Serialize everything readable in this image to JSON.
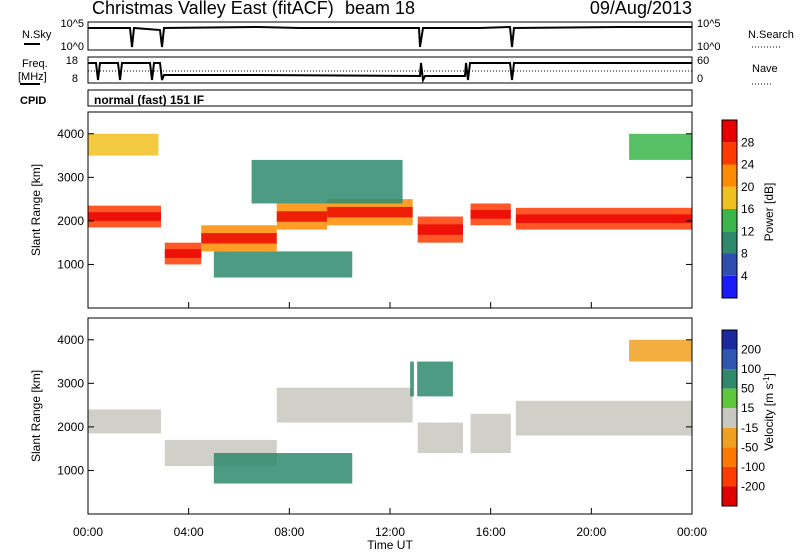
{
  "header": {
    "title": "Christmas Valley East (fitACF)",
    "beam": "beam 18",
    "date": "09/Aug/2013"
  },
  "control_panels": {
    "nsky_label": "N.Sky",
    "nsky_ticks": [
      "10^5",
      "10^0"
    ],
    "nsearch_label": "N.Search",
    "nsearch_ticks": [
      "10^5",
      "10^0"
    ],
    "freq_label_1": "Freq.",
    "freq_label_2": "[MHz]",
    "freq_ticks": [
      "18",
      "8"
    ],
    "nave_label": "Nave",
    "nave_ticks": [
      "60",
      "0"
    ],
    "cpid_label": "CPID",
    "cpid_value": "normal (fast) 151 IF"
  },
  "axes": {
    "x_label": "Time UT",
    "x_ticks": [
      "00:00",
      "04:00",
      "08:00",
      "12:00",
      "16:00",
      "20:00",
      "00:00"
    ],
    "y_label": "Slant Range [km]",
    "y_ticks": [
      "1000",
      "2000",
      "3000",
      "4000"
    ]
  },
  "colorbars": {
    "power": {
      "label": "Power [dB]",
      "ticks": [
        "4",
        "8",
        "12",
        "16",
        "20",
        "24",
        "28"
      ],
      "colors": [
        "#1a1aff",
        "#2e4fb0",
        "#2f8a6d",
        "#39b54a",
        "#f0c020",
        "#ff8c00",
        "#ff3a00",
        "#e80000"
      ]
    },
    "velocity": {
      "label": "Velocity [m s",
      "label_sup": "-1",
      "label_end": "]",
      "ticks": [
        "200",
        "100",
        "50",
        "15",
        "-15",
        "-50",
        "-100",
        "-200"
      ],
      "colors": [
        "#1a2a9e",
        "#2f56b0",
        "#2f8a6d",
        "#5ec83a",
        "#c8c8c0",
        "#f0a020",
        "#ff7800",
        "#ff3c00",
        "#e00000"
      ]
    }
  },
  "chart_data": [
    {
      "type": "heatmap",
      "panel": "power",
      "x_unit": "hours UT",
      "xlim": [
        0,
        24
      ],
      "ylim": [
        0,
        4500
      ],
      "colorbar_label": "Power [dB]",
      "bands": [
        {
          "t0": 0.0,
          "t1": 2.9,
          "r0": 1850,
          "r1": 2350,
          "value": 24
        },
        {
          "t0": 3.0,
          "t1": 4.5,
          "r0": 1000,
          "r1": 1500,
          "value": 26
        },
        {
          "t0": 4.5,
          "t1": 7.5,
          "r0": 1300,
          "r1": 1900,
          "value": 22
        },
        {
          "t0": 7.5,
          "t1": 9.5,
          "r0": 1800,
          "r1": 2400,
          "value": 22
        },
        {
          "t0": 9.5,
          "t1": 12.9,
          "r0": 1900,
          "r1": 2500,
          "value": 20
        },
        {
          "t0": 13.1,
          "t1": 14.9,
          "r0": 1500,
          "r1": 2100,
          "value": 24
        },
        {
          "t0": 15.2,
          "t1": 16.8,
          "r0": 1900,
          "r1": 2400,
          "value": 24
        },
        {
          "t0": 17.0,
          "t1": 24.0,
          "r0": 1800,
          "r1": 2300,
          "value": 26
        },
        {
          "t0": 5.0,
          "t1": 10.5,
          "r0": 700,
          "r1": 1300,
          "value": 10
        },
        {
          "t0": 6.5,
          "t1": 12.5,
          "r0": 2400,
          "r1": 3400,
          "value": 8
        },
        {
          "t0": 21.5,
          "t1": 24.0,
          "r0": 3400,
          "r1": 4000,
          "value": 14
        },
        {
          "t0": 0.0,
          "t1": 2.8,
          "r0": 3500,
          "r1": 4000,
          "value": 16
        }
      ]
    },
    {
      "type": "heatmap",
      "panel": "velocity",
      "x_unit": "hours UT",
      "xlim": [
        0,
        24
      ],
      "ylim": [
        0,
        4500
      ],
      "colorbar_label": "Velocity [m s-1]",
      "bands": [
        {
          "t0": 0.0,
          "t1": 2.9,
          "r0": 1850,
          "r1": 2400,
          "value": 0
        },
        {
          "t0": 3.0,
          "t1": 7.5,
          "r0": 1100,
          "r1": 1700,
          "value": 0
        },
        {
          "t0": 7.5,
          "t1": 12.9,
          "r0": 2100,
          "r1": 2900,
          "value": 0
        },
        {
          "t0": 13.1,
          "t1": 14.9,
          "r0": 1400,
          "r1": 2100,
          "value": 0
        },
        {
          "t0": 15.2,
          "t1": 16.8,
          "r0": 1400,
          "r1": 2300,
          "value": 0
        },
        {
          "t0": 17.0,
          "t1": 24.0,
          "r0": 1800,
          "r1": 2600,
          "value": 0
        },
        {
          "t0": 5.0,
          "t1": 10.5,
          "r0": 700,
          "r1": 1400,
          "value": 40
        },
        {
          "t0": 12.8,
          "t1": 14.5,
          "r0": 2700,
          "r1": 3500,
          "value": 40
        },
        {
          "t0": 21.5,
          "t1": 24.0,
          "r0": 3500,
          "r1": 4000,
          "value": -40
        }
      ]
    }
  ]
}
